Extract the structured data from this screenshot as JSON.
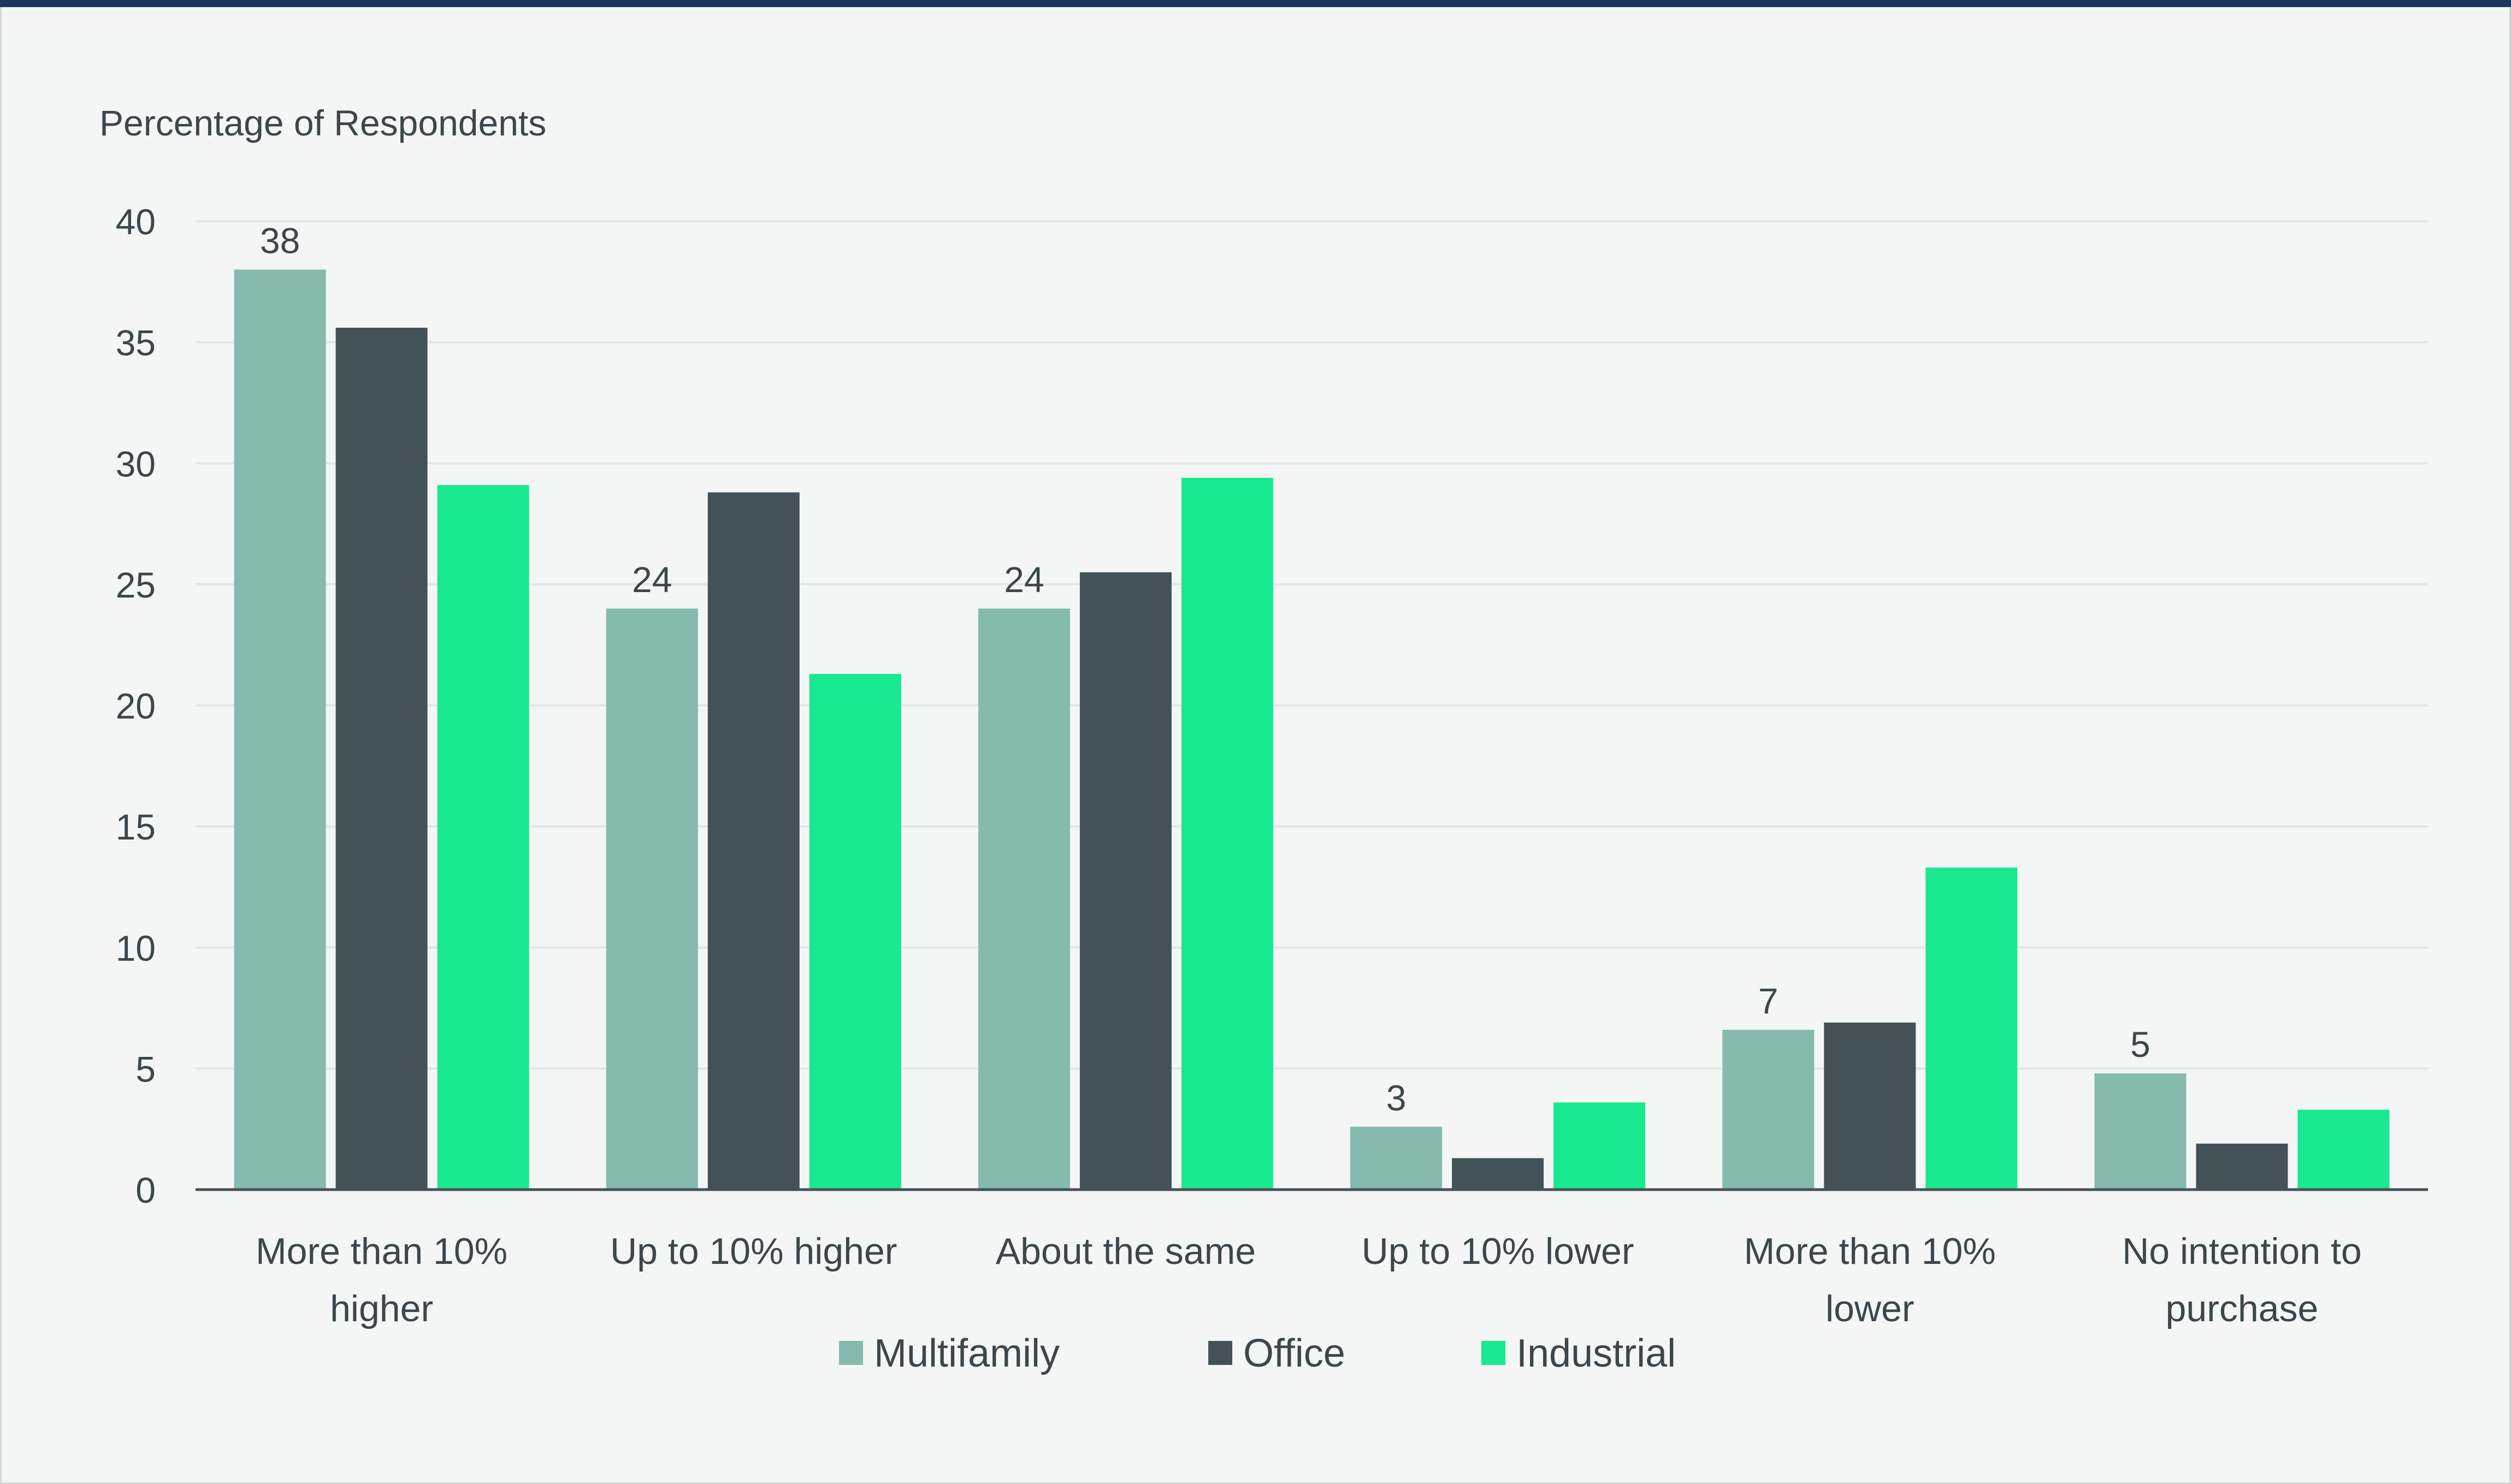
{
  "chart_data": {
    "type": "bar",
    "title": "",
    "ylabel": "Percentage of Respondents",
    "xlabel": "",
    "ylim": [
      0,
      40
    ],
    "yticks": [
      0,
      5,
      10,
      15,
      20,
      25,
      30,
      35,
      40
    ],
    "grid": true,
    "legend_position": "bottom",
    "categories": [
      [
        "More than 10%",
        "higher"
      ],
      [
        "Up to 10% higher"
      ],
      [
        "About the same"
      ],
      [
        "Up to 10% lower"
      ],
      [
        "More than 10%",
        "lower"
      ],
      [
        "No intention to",
        "purchase"
      ]
    ],
    "series": [
      {
        "name": "Multifamily",
        "color": "#84bbad",
        "values": [
          38,
          24,
          24,
          2.6,
          6.6,
          4.8
        ],
        "labels": [
          "38",
          "24",
          "24",
          "3",
          "7",
          "5"
        ]
      },
      {
        "name": "Office",
        "color": "#435256",
        "values": [
          35.6,
          28.8,
          25.5,
          1.3,
          6.9,
          1.9
        ]
      },
      {
        "name": "Industrial",
        "color": "#18e88f",
        "values": [
          29.1,
          21.3,
          29.4,
          3.6,
          13.3,
          3.3
        ]
      }
    ]
  },
  "colors": {
    "header_bar": "#1e3660",
    "background": "#f4f6f5",
    "gridline": "#e3e6e6",
    "axis": "#435256"
  }
}
